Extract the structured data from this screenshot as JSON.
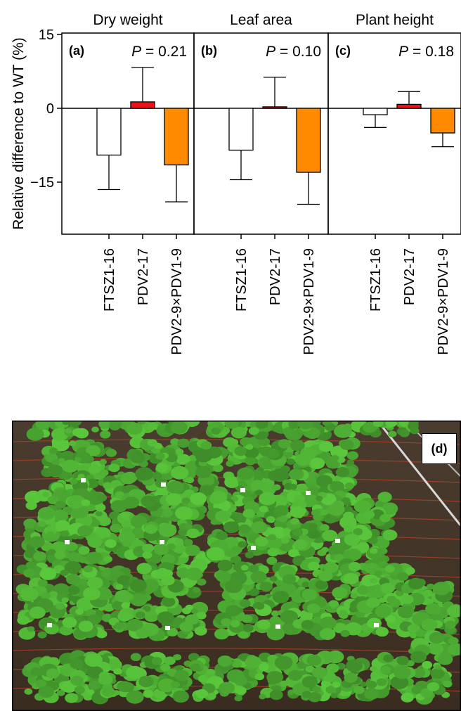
{
  "chart_data": {
    "type": "bar",
    "ylabel": "Relative difference to WT (%)",
    "ylim": [
      -21,
      15
    ],
    "yticks": [
      15,
      0,
      -15
    ],
    "ytick_labels": [
      "15",
      "0",
      "−15"
    ],
    "grid": false,
    "categories": [
      "FTSZ1-16",
      "PDV2-17",
      "PDV2-9×PDV1-9"
    ],
    "bar_colors": [
      "#ffffff",
      "#e8141c",
      "#ff8a00"
    ],
    "panels": [
      {
        "label": "(a)",
        "title": "Dry weight",
        "p_prefix": "P",
        "p_value": "= 0.21",
        "values": [
          -9.5,
          1.3,
          -11.5
        ],
        "errors": [
          7.0,
          7.0,
          7.5
        ]
      },
      {
        "label": "(b)",
        "title": "Leaf area",
        "p_prefix": "P",
        "p_value": "= 0.10",
        "values": [
          -8.5,
          0.3,
          -13.0
        ],
        "errors": [
          6.0,
          6.0,
          6.5
        ]
      },
      {
        "label": "(c)",
        "title": "Plant height",
        "p_prefix": "P",
        "p_value": "= 0.18",
        "values": [
          -1.3,
          0.8,
          -5.0
        ],
        "errors": [
          2.6,
          2.6,
          2.8
        ]
      }
    ]
  },
  "photo": {
    "label": "(d)"
  }
}
